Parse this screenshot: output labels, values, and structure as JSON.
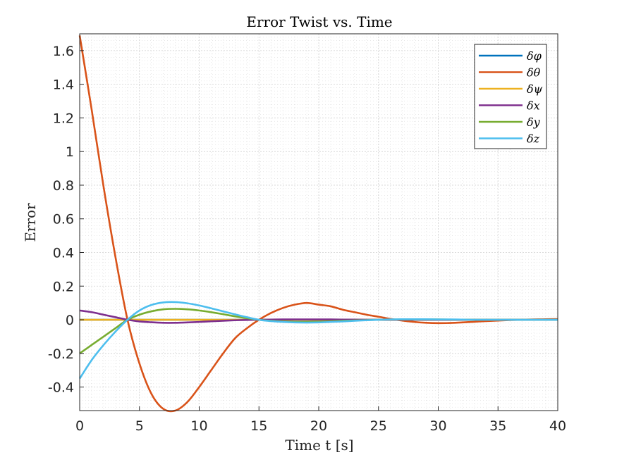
{
  "chart_data": {
    "type": "line",
    "title": "Error Twist vs. Time",
    "xlabel": "Time t [s]",
    "ylabel": "Error",
    "xlim": [
      0,
      40
    ],
    "ylim": [
      -0.54,
      1.7
    ],
    "xticks": [
      0,
      5,
      10,
      15,
      20,
      25,
      30,
      35,
      40
    ],
    "xtick_labels": [
      "0",
      "5",
      "10",
      "15",
      "20",
      "25",
      "30",
      "35",
      "40"
    ],
    "yticks": [
      -0.4,
      -0.2,
      0,
      0.2,
      0.4,
      0.6,
      0.8,
      1.0,
      1.2,
      1.4,
      1.6
    ],
    "ytick_labels": [
      "-0.4",
      "-0.2",
      "0",
      "0.2",
      "0.4",
      "0.6",
      "0.8",
      "1",
      "1.2",
      "1.4",
      "1.6"
    ],
    "grid": true,
    "minor_grid": true,
    "legend_position": "top-right",
    "x": [
      0,
      1,
      2,
      3,
      4,
      5,
      6,
      7,
      8,
      9,
      10,
      11,
      12,
      13,
      14,
      15,
      16,
      17,
      18,
      19,
      20,
      21,
      22,
      23,
      24,
      25,
      26,
      27,
      28,
      29,
      30,
      31,
      32,
      33,
      34,
      35,
      36,
      37,
      38,
      39,
      40
    ],
    "series": [
      {
        "name": "δφ",
        "color": "#0072BD",
        "values": [
          0,
          0,
          0,
          0,
          0,
          0,
          0,
          0,
          0,
          0,
          0,
          0,
          0,
          0,
          0,
          0,
          0,
          0,
          0,
          0,
          0,
          0,
          0,
          0,
          0,
          0,
          0,
          0,
          0,
          0,
          0,
          0,
          0,
          0,
          0,
          0,
          0,
          0,
          0,
          0,
          0
        ]
      },
      {
        "name": "δθ",
        "color": "#D95319",
        "values": [
          1.69,
          1.25,
          0.79,
          0.37,
          0.0,
          -0.26,
          -0.44,
          -0.53,
          -0.54,
          -0.49,
          -0.4,
          -0.3,
          -0.2,
          -0.11,
          -0.05,
          0.0,
          0.04,
          0.07,
          0.09,
          0.1,
          0.09,
          0.08,
          0.06,
          0.045,
          0.03,
          0.018,
          0.005,
          -0.005,
          -0.013,
          -0.018,
          -0.02,
          -0.019,
          -0.016,
          -0.012,
          -0.008,
          -0.005,
          -0.002,
          0.0,
          0.002,
          0.003,
          0.004
        ]
      },
      {
        "name": "δψ",
        "color": "#EDB120",
        "values": [
          0,
          0,
          0,
          0,
          0,
          0,
          0,
          0,
          0,
          0,
          0,
          0,
          0,
          0,
          0,
          0,
          0,
          0,
          0,
          0,
          0,
          0,
          0,
          0,
          0,
          0,
          0,
          0,
          0,
          0,
          0,
          0,
          0,
          0,
          0,
          0,
          0,
          0,
          0,
          0,
          0
        ]
      },
      {
        "name": "δx",
        "color": "#7E2F8E",
        "values": [
          0.055,
          0.045,
          0.03,
          0.015,
          0.0,
          -0.01,
          -0.015,
          -0.018,
          -0.018,
          -0.016,
          -0.013,
          -0.009,
          -0.006,
          -0.003,
          -0.001,
          0.0,
          0.001,
          0.002,
          0.002,
          0.002,
          0.002,
          0.002,
          0.001,
          0.001,
          0.0,
          0.0,
          0.0,
          0.0,
          0.0,
          0.0,
          0.0,
          0.0,
          0.0,
          0.0,
          0.0,
          0.0,
          0.0,
          0.0,
          0.0,
          0.0,
          0.0
        ]
      },
      {
        "name": "δy",
        "color": "#77AC30",
        "values": [
          -0.2,
          -0.15,
          -0.1,
          -0.05,
          0.0,
          0.03,
          0.05,
          0.062,
          0.065,
          0.062,
          0.055,
          0.045,
          0.033,
          0.02,
          0.009,
          0.0,
          -0.006,
          -0.01,
          -0.012,
          -0.012,
          -0.011,
          -0.009,
          -0.006,
          -0.004,
          -0.002,
          0.0,
          0.001,
          0.002,
          0.002,
          0.002,
          0.002,
          0.001,
          0.001,
          0.0,
          0.0,
          0.0,
          0.0,
          0.0,
          0.0,
          0.0,
          0.0
        ]
      },
      {
        "name": "δz",
        "color": "#4DBEEE",
        "values": [
          -0.35,
          -0.24,
          -0.15,
          -0.07,
          0.0,
          0.055,
          0.088,
          0.103,
          0.105,
          0.098,
          0.085,
          0.068,
          0.05,
          0.032,
          0.015,
          0.0,
          -0.008,
          -0.013,
          -0.016,
          -0.017,
          -0.016,
          -0.013,
          -0.01,
          -0.006,
          -0.003,
          0.0,
          0.002,
          0.003,
          0.003,
          0.003,
          0.002,
          0.002,
          0.001,
          0.0,
          0.0,
          0.0,
          0.0,
          0.0,
          0.0,
          0.0,
          0.0
        ]
      }
    ]
  }
}
